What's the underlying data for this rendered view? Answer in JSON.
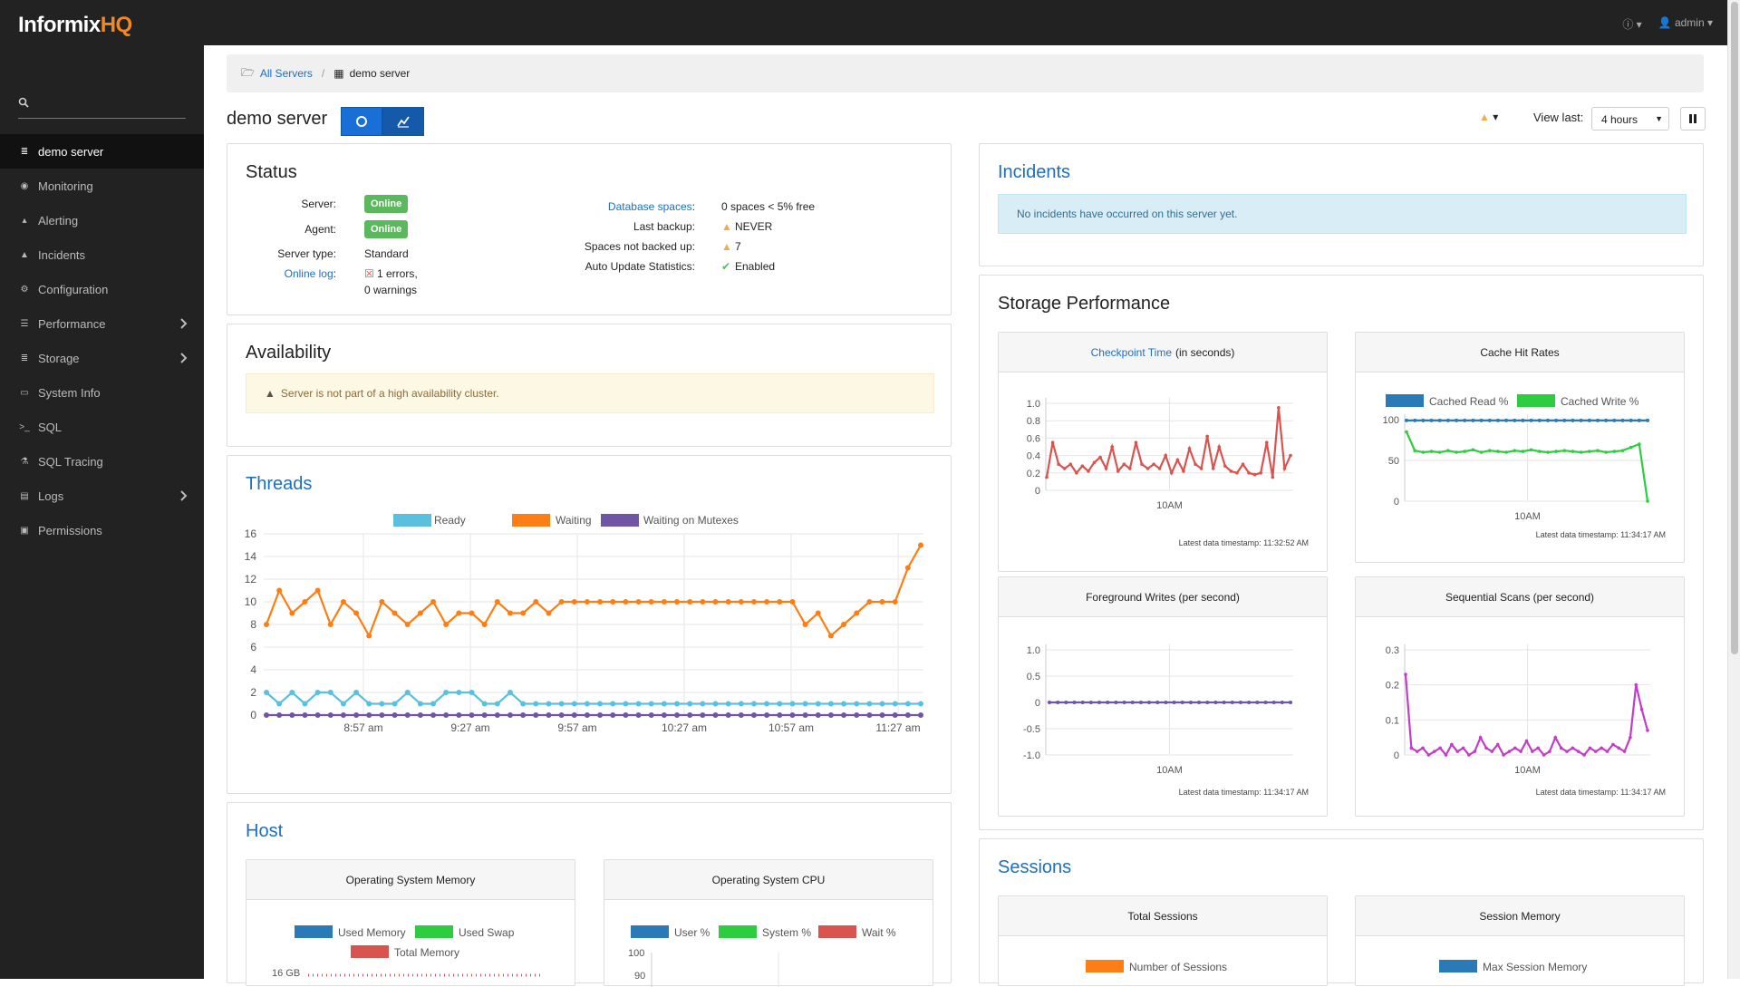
{
  "app": {
    "logo_main": "Informix",
    "logo_accent": "HQ",
    "user": "admin"
  },
  "sidebar": {
    "search_placeholder": "",
    "items": [
      {
        "label": "demo server",
        "icon": "database-icon",
        "active": true
      },
      {
        "label": "Monitoring",
        "icon": "eye-icon"
      },
      {
        "label": "Alerting",
        "icon": "bell-icon"
      },
      {
        "label": "Incidents",
        "icon": "warning-icon"
      },
      {
        "label": "Configuration",
        "icon": "gear-icon"
      },
      {
        "label": "Performance",
        "icon": "sliders-icon",
        "expandable": true
      },
      {
        "label": "Storage",
        "icon": "database-icon",
        "expandable": true
      },
      {
        "label": "System Info",
        "icon": "monitor-icon"
      },
      {
        "label": "SQL",
        "icon": "terminal-icon"
      },
      {
        "label": "SQL Tracing",
        "icon": "flask-icon"
      },
      {
        "label": "Logs",
        "icon": "file-icon",
        "expandable": true
      },
      {
        "label": "Permissions",
        "icon": "lock-icon"
      }
    ]
  },
  "breadcrumb": {
    "root": "All Servers",
    "current": "demo server"
  },
  "page": {
    "title": "demo server",
    "view_last_label": "View last:",
    "view_last_value": "4 hours"
  },
  "status": {
    "title": "Status",
    "server_label": "Server:",
    "server_value": "Online",
    "agent_label": "Agent:",
    "agent_value": "Online",
    "type_label": "Server type:",
    "type_value": "Standard",
    "log_label": "Online log",
    "log_value_1": "1 errors,",
    "log_value_2": "0 warnings",
    "dbspaces_label": "Database spaces",
    "dbspaces_value": "0 spaces < 5% free",
    "backup_label": "Last backup:",
    "backup_value": "NEVER",
    "notbacked_label": "Spaces not backed up:",
    "notbacked_value": "7",
    "autoupdate_label": "Auto Update Statistics:",
    "autoupdate_value": "Enabled"
  },
  "availability": {
    "title": "Availability",
    "message": "Server is not part of a high availability cluster."
  },
  "threads": {
    "title": "Threads",
    "legend": [
      "Ready",
      "Waiting",
      "Waiting on Mutexes"
    ]
  },
  "host": {
    "title": "Host",
    "memory_title": "Operating System Memory",
    "memory_legend": [
      "Used Memory",
      "Used Swap",
      "Total Memory"
    ],
    "memory_tick": "16 GB",
    "cpu_title": "Operating System CPU",
    "cpu_legend": [
      "User %",
      "System %",
      "Wait %"
    ],
    "cpu_ticks": [
      "100",
      "90"
    ]
  },
  "incidents": {
    "title": "Incidents",
    "message": "No incidents have occurred on this server yet."
  },
  "storage": {
    "title": "Storage Performance",
    "checkpoint_link": "Checkpoint Time",
    "checkpoint_suffix": "(in seconds)",
    "cache_title": "Cache Hit Rates",
    "cache_legend": [
      "Cached Read %",
      "Cached Write %"
    ],
    "fg_title": "Foreground Writes (per second)",
    "seq_title": "Sequential Scans (per second)",
    "ts_checkpoint": "Latest data timestamp: 11:32:52 AM",
    "ts_cache": "Latest data timestamp: 11:34:17 AM",
    "ts_fg": "Latest data timestamp: 11:34:17 AM",
    "ts_seq": "Latest data timestamp: 11:34:17 AM"
  },
  "sessions": {
    "title": "Sessions",
    "total_title": "Total Sessions",
    "total_legend": "Number of Sessions",
    "memory_title": "Session Memory",
    "memory_legend": "Max Session Memory"
  },
  "colors": {
    "ready": "#5bc0de",
    "waiting": "#fd7e14",
    "mutex": "#6f55a3",
    "red": "#d9534f",
    "blue": "#2a7ab8",
    "green": "#2ecc40",
    "magenta": "#c23cc8"
  },
  "chart_data": [
    {
      "type": "line",
      "name": "Threads",
      "x_ticks": [
        "8:57 am",
        "9:27 am",
        "9:57 am",
        "10:27 am",
        "10:57 am",
        "11:27 am"
      ],
      "ylim": [
        0,
        16
      ],
      "y_ticks": [
        0,
        2,
        4,
        6,
        8,
        10,
        12,
        14,
        16
      ],
      "series": [
        {
          "name": "Ready",
          "values": [
            2,
            1,
            2,
            1,
            2,
            2,
            1,
            2,
            1,
            1,
            1,
            2,
            1,
            1,
            2,
            2,
            2,
            1,
            1,
            2,
            1,
            1,
            1,
            1,
            1,
            1,
            1,
            1,
            1,
            1,
            1,
            1,
            1,
            1,
            1,
            1,
            1,
            1,
            1,
            1,
            1,
            1,
            1,
            1,
            1,
            1,
            1,
            1,
            1,
            1,
            1,
            1
          ]
        },
        {
          "name": "Waiting",
          "values": [
            8,
            11,
            9,
            10,
            11,
            8,
            10,
            9,
            7,
            10,
            9,
            8,
            9,
            10,
            8,
            9,
            9,
            8,
            10,
            9,
            9,
            10,
            9,
            10,
            10,
            10,
            10,
            10,
            10,
            10,
            10,
            10,
            10,
            10,
            10,
            10,
            10,
            10,
            10,
            10,
            10,
            10,
            8,
            9,
            7,
            8,
            9,
            10,
            10,
            10,
            13,
            15
          ]
        },
        {
          "name": "Waiting on Mutexes",
          "values": [
            0,
            0,
            0,
            0,
            0,
            0,
            0,
            0,
            0,
            0,
            0,
            0,
            0,
            0,
            0,
            0,
            0,
            0,
            0,
            0,
            0,
            0,
            0,
            0,
            0,
            0,
            0,
            0,
            0,
            0,
            0,
            0,
            0,
            0,
            0,
            0,
            0,
            0,
            0,
            0,
            0,
            0,
            0,
            0,
            0,
            0,
            0,
            0,
            0,
            0,
            0,
            0
          ]
        }
      ]
    },
    {
      "type": "line",
      "name": "Checkpoint Time",
      "x_ticks": [
        "10AM"
      ],
      "ylim": [
        0,
        1.0
      ],
      "y_ticks": [
        "0",
        "0.2",
        "0.4",
        "0.6",
        "0.8",
        "1.0"
      ],
      "values": [
        0.15,
        0.55,
        0.3,
        0.25,
        0.3,
        0.2,
        0.28,
        0.22,
        0.32,
        0.38,
        0.25,
        0.5,
        0.22,
        0.3,
        0.25,
        0.55,
        0.3,
        0.25,
        0.3,
        0.25,
        0.4,
        0.2,
        0.35,
        0.22,
        0.48,
        0.3,
        0.25,
        0.62,
        0.25,
        0.5,
        0.28,
        0.22,
        0.2,
        0.3,
        0.2,
        0.18,
        0.2,
        0.55,
        0.15,
        0.95,
        0.25,
        0.4
      ]
    },
    {
      "type": "line",
      "name": "Cache Hit Rates",
      "x_ticks": [
        "10AM"
      ],
      "ylim": [
        0,
        100
      ],
      "y_ticks": [
        "0",
        "50",
        "100"
      ],
      "series": [
        {
          "name": "Cached Read %",
          "values": [
            99,
            99,
            99,
            99,
            99,
            99,
            99,
            99,
            99,
            99,
            99,
            99,
            99,
            99,
            99,
            99,
            99,
            99,
            99,
            99,
            99,
            99,
            99,
            99,
            99,
            99,
            99,
            99,
            99,
            99
          ]
        },
        {
          "name": "Cached Write %",
          "values": [
            85,
            62,
            60,
            61,
            60,
            62,
            60,
            61,
            63,
            60,
            62,
            61,
            60,
            62,
            61,
            63,
            61,
            60,
            61,
            62,
            61,
            60,
            61,
            62,
            60,
            61,
            62,
            66,
            70,
            0
          ]
        }
      ]
    },
    {
      "type": "line",
      "name": "Foreground Writes",
      "x_ticks": [
        "10AM"
      ],
      "ylim": [
        -1.0,
        1.0
      ],
      "y_ticks": [
        "-1.0",
        "-0.5",
        "0",
        "0.5",
        "1.0"
      ],
      "values": [
        0,
        0,
        0,
        0,
        0,
        0,
        0,
        0,
        0,
        0,
        0,
        0,
        0,
        0,
        0,
        0,
        0,
        0,
        0,
        0,
        0,
        0,
        0,
        0,
        0,
        0,
        0,
        0,
        0,
        0
      ]
    },
    {
      "type": "line",
      "name": "Sequential Scans",
      "x_ticks": [
        "10AM"
      ],
      "ylim": [
        0,
        0.3
      ],
      "y_ticks": [
        "0",
        "0.1",
        "0.2",
        "0.3"
      ],
      "values": [
        0.23,
        0.02,
        0.01,
        0.02,
        0.0,
        0.01,
        0.02,
        0.0,
        0.03,
        0.01,
        0.02,
        0.0,
        0.01,
        0.05,
        0.02,
        0.01,
        0.03,
        0.0,
        0.01,
        0.02,
        0.01,
        0.04,
        0.01,
        0.02,
        0.0,
        0.01,
        0.05,
        0.02,
        0.01,
        0.02,
        0.01,
        0.0,
        0.02,
        0.01,
        0.02,
        0.01,
        0.03,
        0.02,
        0.01,
        0.05,
        0.2,
        0.13,
        0.07
      ]
    }
  ]
}
